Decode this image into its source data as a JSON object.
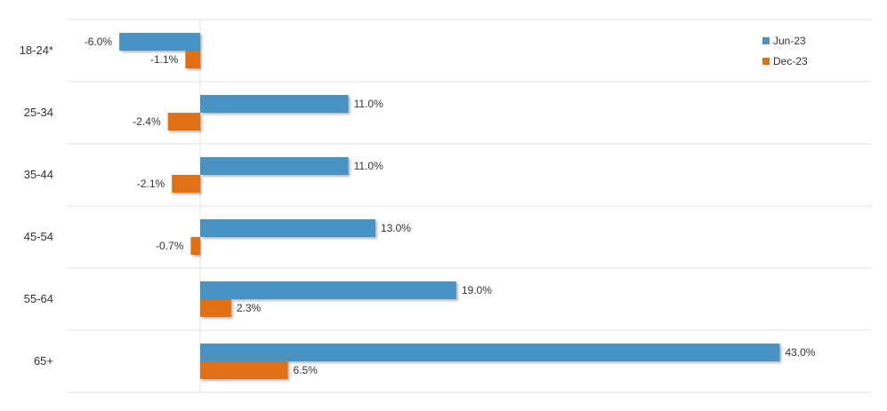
{
  "chart_data": {
    "type": "bar",
    "orientation": "horizontal",
    "categories": [
      "18-24*",
      "25-34",
      "35-44",
      "45-54",
      "55-64",
      "65+"
    ],
    "series": [
      {
        "name": "Jun-23",
        "color": "#4a93c4",
        "values": [
          -6.0,
          11.0,
          11.0,
          13.0,
          19.0,
          43.0
        ],
        "labels": [
          "-6.0%",
          "11.0%",
          "11.0%",
          "13.0%",
          "19.0%",
          "43.0%"
        ]
      },
      {
        "name": "Dec-23",
        "color": "#e07014",
        "values": [
          -1.1,
          -2.4,
          -2.1,
          -0.7,
          2.3,
          6.5
        ],
        "labels": [
          "-1.1%",
          "-2.4%",
          "-2.1%",
          "-0.7%",
          "2.3%",
          "6.5%"
        ]
      }
    ],
    "xlim": [
      -10,
      49
    ],
    "grid": true,
    "legend_position": "top-right"
  }
}
